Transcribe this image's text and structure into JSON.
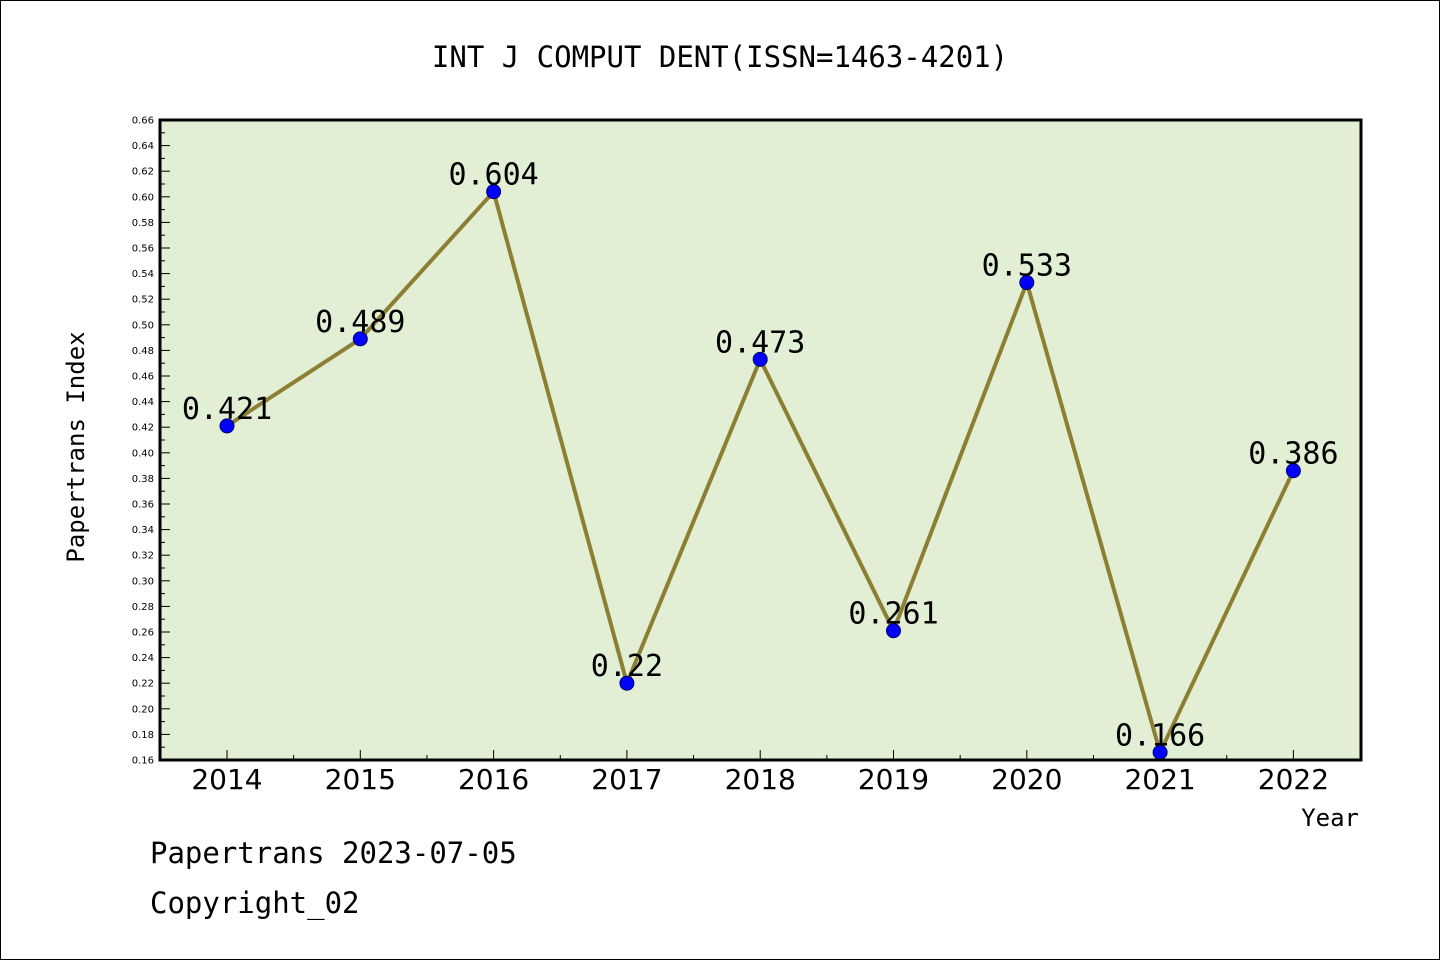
{
  "chart_data": {
    "type": "line",
    "title": "INT J COMPUT DENT(ISSN=1463-4201)",
    "xlabel": "Year",
    "ylabel": "Papertrans Index",
    "categories": [
      "2014",
      "2015",
      "2016",
      "2017",
      "2018",
      "2019",
      "2020",
      "2021",
      "2022"
    ],
    "series": [
      {
        "values": [
          0.421,
          0.489,
          0.604,
          0.22,
          0.473,
          0.261,
          0.533,
          0.166,
          0.386
        ],
        "labels": [
          "0.421",
          "0.489",
          "0.604",
          "0.22",
          "0.473",
          "0.261",
          "0.533",
          "0.166",
          "0.386"
        ]
      }
    ],
    "ylim": [
      0.16,
      0.66
    ],
    "y_ticks": [
      "0.16",
      "0.18",
      "0.20",
      "0.22",
      "0.24",
      "0.26",
      "0.28",
      "0.30",
      "0.32",
      "0.34",
      "0.36",
      "0.38",
      "0.40",
      "0.42",
      "0.44",
      "0.46",
      "0.48",
      "0.50",
      "0.52",
      "0.54",
      "0.56",
      "0.58",
      "0.60",
      "0.62",
      "0.64",
      "0.66"
    ],
    "grid": false,
    "legend": "none",
    "colors": {
      "plot_background": "#e2efd5",
      "line": "#8c7f34",
      "marker": "#0000ff",
      "axes": "#000000"
    }
  },
  "footer": {
    "line1": "Papertrans 2023-07-05",
    "line2": "Copyright_02"
  }
}
